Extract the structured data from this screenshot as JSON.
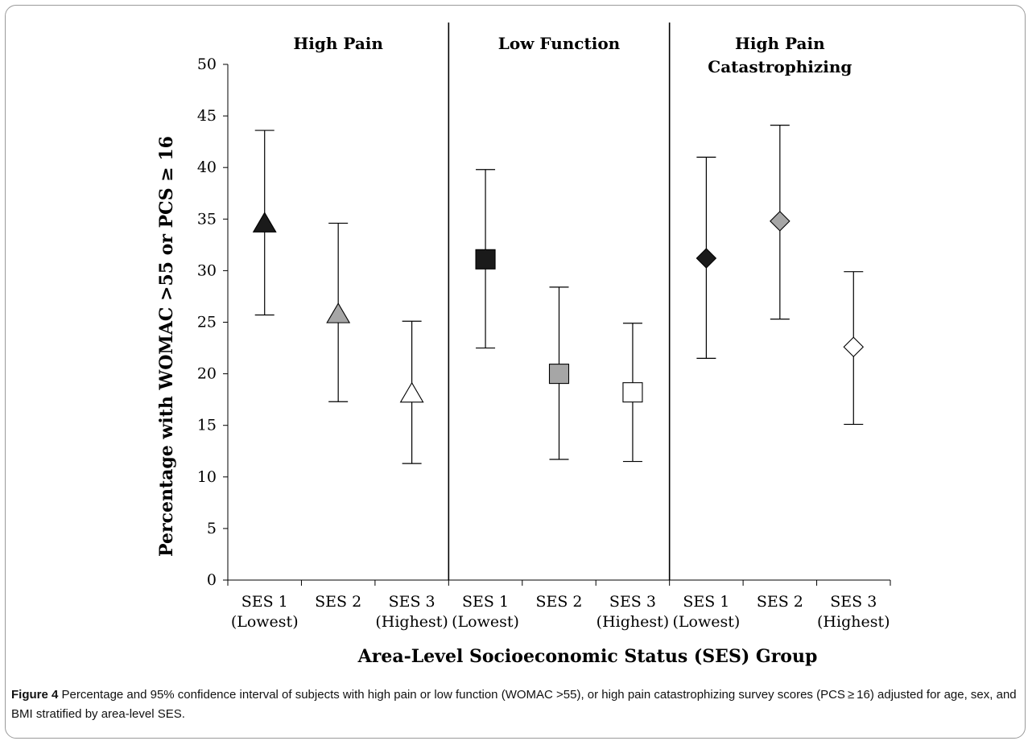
{
  "chart_data": {
    "type": "scatter",
    "ylabel": "Percentage with WOMAC >55 or PCS ≥ 16",
    "xlabel": "Area-Level Socioeconomic Status (SES) Group",
    "ylim": [
      0,
      50
    ],
    "yticks": [
      0,
      5,
      10,
      15,
      20,
      25,
      30,
      35,
      40,
      45,
      50
    ],
    "grid": false,
    "categories": [
      [
        "SES 1",
        "(Lowest)"
      ],
      [
        "SES 2",
        ""
      ],
      [
        "SES 3",
        "(Highest)"
      ],
      [
        "SES 1",
        "(Lowest)"
      ],
      [
        "SES 2",
        ""
      ],
      [
        "SES 3",
        "(Highest)"
      ],
      [
        "SES 1",
        "(Lowest)"
      ],
      [
        "SES 2",
        ""
      ],
      [
        "SES 3",
        "(Highest)"
      ]
    ],
    "panels": [
      {
        "label": [
          "High Pain"
        ],
        "points": [
          {
            "estimate": 34.5,
            "ci": [
              25.7,
              43.6
            ],
            "marker": "triangle",
            "fill": "#1a1a1a"
          },
          {
            "estimate": 25.7,
            "ci": [
              17.3,
              34.6
            ],
            "marker": "triangle",
            "fill": "#a6a6a6"
          },
          {
            "estimate": 18.0,
            "ci": [
              11.3,
              25.1
            ],
            "marker": "triangle",
            "fill": "#ffffff"
          }
        ]
      },
      {
        "label": [
          "Low Function"
        ],
        "points": [
          {
            "estimate": 31.1,
            "ci": [
              22.5,
              39.8
            ],
            "marker": "square",
            "fill": "#1a1a1a"
          },
          {
            "estimate": 20.0,
            "ci": [
              11.7,
              28.4
            ],
            "marker": "square",
            "fill": "#a6a6a6"
          },
          {
            "estimate": 18.2,
            "ci": [
              11.5,
              24.9
            ],
            "marker": "square",
            "fill": "#ffffff"
          }
        ]
      },
      {
        "label": [
          "High Pain",
          "Catastrophizing"
        ],
        "points": [
          {
            "estimate": 31.2,
            "ci": [
              21.5,
              41.0
            ],
            "marker": "diamond",
            "fill": "#1a1a1a"
          },
          {
            "estimate": 34.8,
            "ci": [
              25.3,
              44.1
            ],
            "marker": "diamond",
            "fill": "#a6a6a6"
          },
          {
            "estimate": 22.6,
            "ci": [
              15.1,
              29.9
            ],
            "marker": "diamond",
            "fill": "#ffffff"
          }
        ]
      }
    ]
  },
  "caption": {
    "label": "Figure 4",
    "text": " Percentage and 95% confidence interval of subjects with high pain or low function (WOMAC >55), or high pain catastrophizing survey scores (PCS ≥ 16) adjusted for age, sex, and BMI stratified by area-level SES."
  }
}
